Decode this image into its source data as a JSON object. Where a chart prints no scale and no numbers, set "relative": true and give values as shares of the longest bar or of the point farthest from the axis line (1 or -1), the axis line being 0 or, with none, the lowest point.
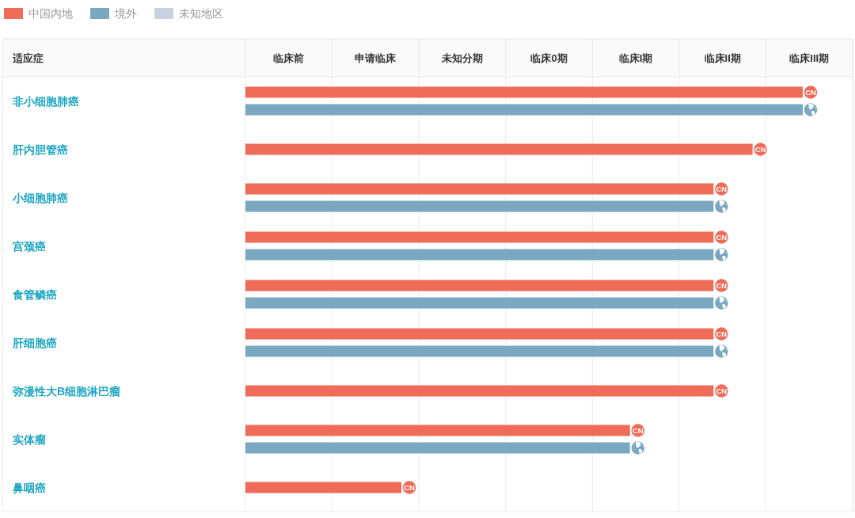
{
  "chart_data": {
    "type": "bar",
    "orientation": "horizontal",
    "relative": true,
    "ylabel": "适应症",
    "categories": [
      "非小细胞肺癌",
      "肝内胆管癌",
      "小细胞肺癌",
      "宫颈癌",
      "食管鳞癌",
      "肝细胞癌",
      "弥漫性大B细胞淋巴瘤",
      "实体瘤",
      "鼻咽癌"
    ],
    "series": [
      {
        "name": "中国内地",
        "color": "#ee6c58",
        "values": [
          1,
          0.91,
          0.84,
          0.84,
          0.84,
          0.84,
          0.84,
          0.69,
          0.28
        ]
      },
      {
        "name": "境外",
        "color": "#79a8c0",
        "values": [
          1,
          null,
          0.84,
          0.84,
          0.84,
          0.84,
          null,
          0.69,
          null
        ]
      },
      {
        "name": "未知地区",
        "color": "#c8d1df",
        "values": [
          null,
          null,
          null,
          null,
          null,
          null,
          null,
          null,
          null
        ]
      }
    ],
    "grid": "x",
    "legend": "top left",
    "marker": "circle",
    "annotations": [
      "临床前",
      "申请临床",
      "未知分期",
      "临床0期",
      "临床I期",
      "临床II期",
      "临床III期",
      {
        "text": "CN",
        "x": 1,
        "y": "非小细胞肺癌"
      },
      {
        "text": "CN",
        "x": 0.91,
        "y": "肝内胆管癌"
      },
      {
        "text": "CN",
        "x": 0.84,
        "y": "小细胞肺癌"
      },
      {
        "text": "CN",
        "x": 0.84,
        "y": "宫颈癌"
      },
      {
        "text": "CN",
        "x": 0.84,
        "y": "食管鳞癌"
      },
      {
        "text": "CN",
        "x": 0.84,
        "y": "肝细胞癌"
      },
      {
        "text": "CN",
        "x": 0.84,
        "y": "弥漫性大B细胞淋巴瘤"
      },
      {
        "text": "CN",
        "x": 0.69,
        "y": "实体瘤"
      },
      {
        "text": "CN",
        "x": 0.28,
        "y": "鼻咽癌"
      }
    ]
  }
}
